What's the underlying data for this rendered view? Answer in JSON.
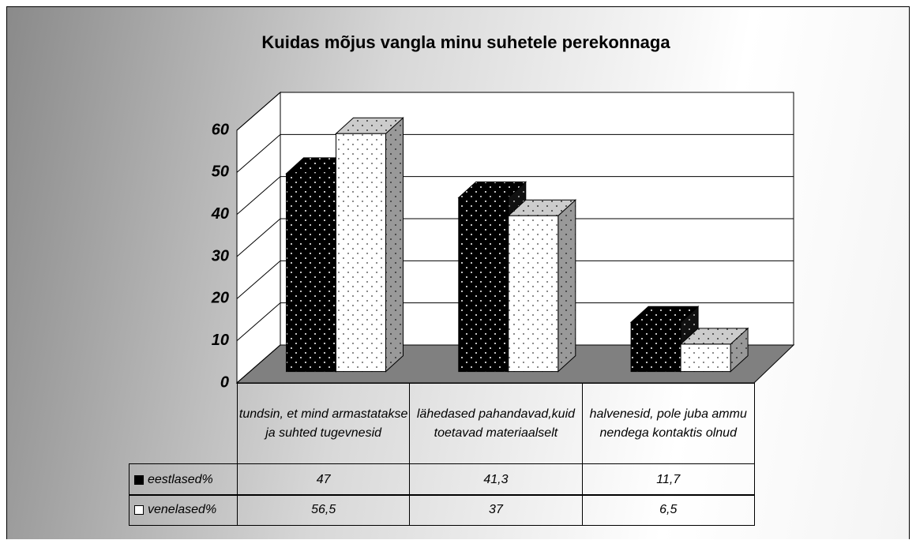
{
  "chart_data": {
    "type": "bar3d",
    "title": "Kuidas mõjus vangla minu suhetele perekonnaga",
    "categories": [
      "tundsin, et mind armastatakse ja suhted tugevnesid",
      "lähedased pahandavad,kuid toetavad materiaalselt",
      "halvenesid, pole juba ammu nendega kontaktis olnud"
    ],
    "series": [
      {
        "name": "eestlased%",
        "color": "#000000",
        "values": [
          47,
          41.3,
          11.7
        ],
        "value_labels": [
          "47",
          "41,3",
          "11,7"
        ]
      },
      {
        "name": "venelased%",
        "color": "#ffffff",
        "values": [
          56.5,
          37,
          6.5
        ],
        "value_labels": [
          "56,5",
          "37",
          "6,5"
        ]
      }
    ],
    "ylim": [
      0,
      60
    ],
    "yticks": [
      0,
      10,
      20,
      30,
      40,
      50,
      60
    ],
    "grid": true
  }
}
